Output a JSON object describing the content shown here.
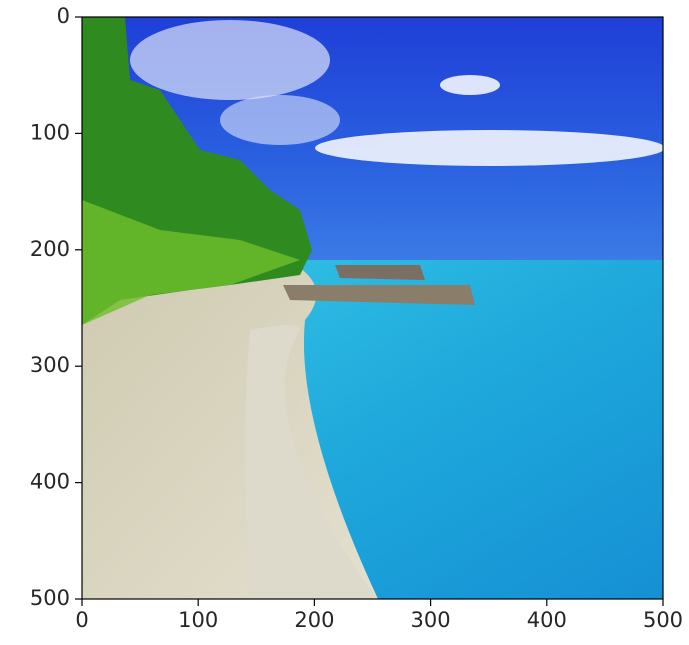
{
  "chart_data": {
    "type": "image",
    "xlim": [
      0,
      500
    ],
    "ylim": [
      500,
      0
    ],
    "xticks": [
      0,
      100,
      200,
      300,
      400,
      500
    ],
    "yticks": [
      0,
      100,
      200,
      300,
      400,
      500
    ]
  }
}
